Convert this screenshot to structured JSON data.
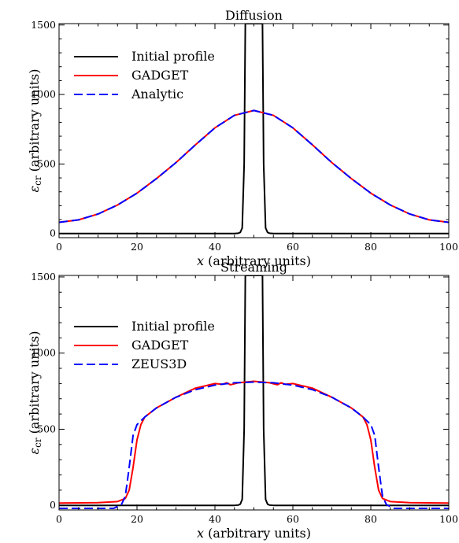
{
  "chart_data": [
    {
      "type": "line",
      "title": "Diffusion",
      "xlabel_var": "x",
      "xlabel_rest": " (arbitrary units)",
      "ylabel_var": "ε",
      "ylabel_sub": "cr",
      "ylabel_rest": " (arbitrary units)",
      "xlim": [
        0,
        100
      ],
      "ylim": [
        -30,
        1510
      ],
      "xticks": [
        "0",
        "20",
        "40",
        "60",
        "80",
        "100"
      ],
      "yticks": [
        "0",
        "500",
        "1000",
        "1500"
      ],
      "legend_position": "top-left",
      "series": [
        {
          "name": "Initial profile",
          "color": "#000000",
          "dash": "solid",
          "x": [
            0,
            45,
            46,
            46.5,
            47,
            47.5,
            47.8,
            52.2,
            52.5,
            53,
            53.5,
            54,
            55,
            100
          ],
          "y": [
            0,
            0,
            2,
            8,
            40,
            500,
            1510,
            1510,
            500,
            40,
            8,
            2,
            0,
            0
          ]
        },
        {
          "name": "GADGET",
          "color": "#ff0000",
          "dash": "solid",
          "x": [
            0,
            5,
            10,
            15,
            20,
            25,
            30,
            35,
            40,
            45,
            50,
            55,
            60,
            65,
            70,
            75,
            80,
            85,
            90,
            95,
            100
          ],
          "y": [
            80,
            98,
            140,
            205,
            290,
            395,
            510,
            638,
            760,
            850,
            885,
            850,
            760,
            638,
            510,
            395,
            290,
            205,
            140,
            98,
            80
          ]
        },
        {
          "name": "Analytic",
          "color": "#0000ff",
          "dash": "dashed",
          "x": [
            0,
            5,
            10,
            15,
            20,
            25,
            30,
            35,
            40,
            45,
            50,
            55,
            60,
            65,
            70,
            75,
            80,
            85,
            90,
            95,
            100
          ],
          "y": [
            80,
            98,
            140,
            205,
            290,
            395,
            510,
            638,
            760,
            850,
            885,
            850,
            760,
            638,
            510,
            395,
            290,
            205,
            140,
            98,
            80
          ]
        }
      ]
    },
    {
      "type": "line",
      "title": "Streaming",
      "xlabel_var": "x",
      "xlabel_rest": " (arbitrary units)",
      "ylabel_var": "ε",
      "ylabel_sub": "cr",
      "ylabel_rest": " (arbitrary units)",
      "xlim": [
        0,
        100
      ],
      "ylim": [
        -30,
        1510
      ],
      "xticks": [
        "0",
        "20",
        "40",
        "60",
        "80",
        "100"
      ],
      "yticks": [
        "0",
        "500",
        "1000",
        "1500"
      ],
      "legend_position": "top-left",
      "series": [
        {
          "name": "Initial profile",
          "color": "#000000",
          "dash": "solid",
          "x": [
            0,
            45,
            46,
            46.5,
            47,
            47.5,
            47.8,
            52.2,
            52.5,
            53,
            53.5,
            54,
            55,
            100
          ],
          "y": [
            0,
            0,
            2,
            8,
            40,
            500,
            1510,
            1510,
            500,
            40,
            8,
            2,
            0,
            0
          ]
        },
        {
          "name": "GADGET",
          "color": "#ff0000",
          "dash": "solid",
          "x": [
            0,
            10,
            15,
            17,
            18,
            19,
            20,
            21,
            22,
            25,
            30,
            35,
            40,
            42,
            43,
            44,
            46,
            50,
            54,
            56,
            57,
            58,
            60,
            65,
            70,
            75,
            78,
            79,
            80,
            81,
            82,
            83,
            85,
            90,
            100
          ],
          "y": [
            15,
            18,
            25,
            45,
            100,
            250,
            430,
            530,
            580,
            640,
            710,
            770,
            800,
            795,
            805,
            792,
            805,
            815,
            805,
            792,
            805,
            795,
            800,
            770,
            710,
            640,
            580,
            530,
            430,
            250,
            100,
            45,
            25,
            18,
            15
          ]
        },
        {
          "name": "ZEUS3D",
          "color": "#0000ff",
          "dash": "dashed",
          "x": [
            0,
            14,
            16,
            17,
            18,
            19,
            20,
            22,
            25,
            30,
            35,
            40,
            45,
            50,
            55,
            60,
            65,
            70,
            75,
            78,
            80,
            81,
            82,
            83,
            84,
            86,
            100
          ],
          "y": [
            -20,
            -20,
            5,
            60,
            250,
            460,
            530,
            580,
            640,
            710,
            760,
            790,
            805,
            810,
            805,
            790,
            760,
            710,
            640,
            580,
            530,
            460,
            250,
            60,
            5,
            -20,
            -20
          ]
        }
      ]
    }
  ]
}
